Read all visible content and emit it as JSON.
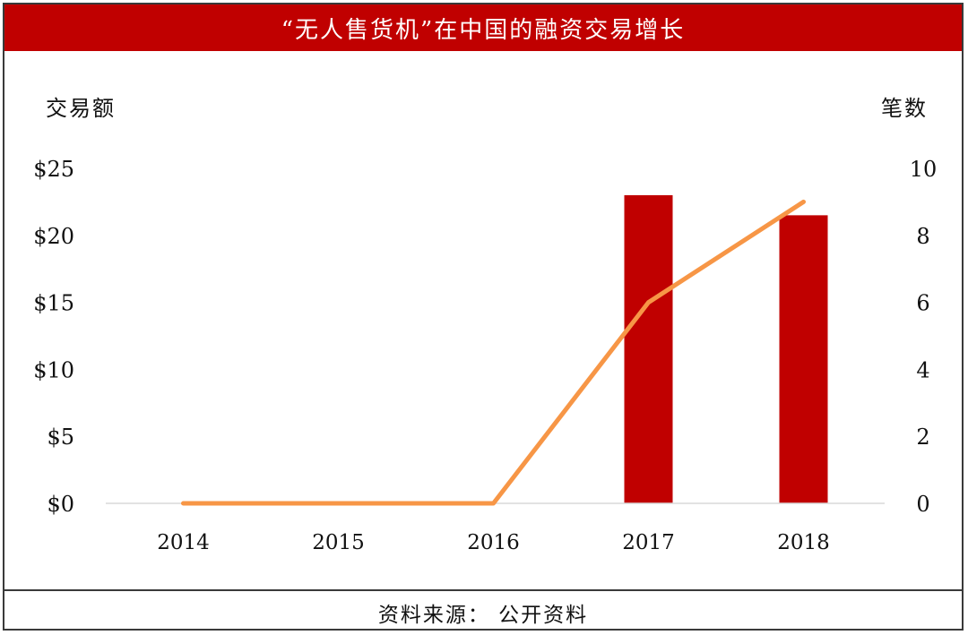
{
  "title": "“无人售货机”在中国的融资交易增长",
  "footer": "资料来源： 公开资料",
  "colors": {
    "brand_red": "#c00000",
    "bar": "#c00000",
    "line": "#f79646",
    "axis": "#d9d9d9"
  },
  "chart_data": {
    "type": "bar",
    "categories": [
      "2014",
      "2015",
      "2016",
      "2017",
      "2018"
    ],
    "left_axis": {
      "label": "交易额",
      "ylim": [
        0,
        25
      ],
      "ticks": [
        0,
        5,
        10,
        15,
        20,
        25
      ],
      "tick_labels": [
        "$0",
        "$5",
        "$10",
        "$15",
        "$20",
        "$25"
      ]
    },
    "right_axis": {
      "label": "笔数",
      "ylim": [
        0,
        10
      ],
      "ticks": [
        0,
        2,
        4,
        6,
        8,
        10
      ],
      "tick_labels": [
        "0",
        "2",
        "4",
        "6",
        "8",
        "10"
      ]
    },
    "series": [
      {
        "type": "bar",
        "axis": "left",
        "values": [
          0,
          0,
          0,
          23,
          21.5
        ]
      },
      {
        "type": "line",
        "axis": "right",
        "values": [
          0,
          0,
          0,
          6,
          9
        ]
      }
    ],
    "grid": false,
    "legend": "none"
  }
}
